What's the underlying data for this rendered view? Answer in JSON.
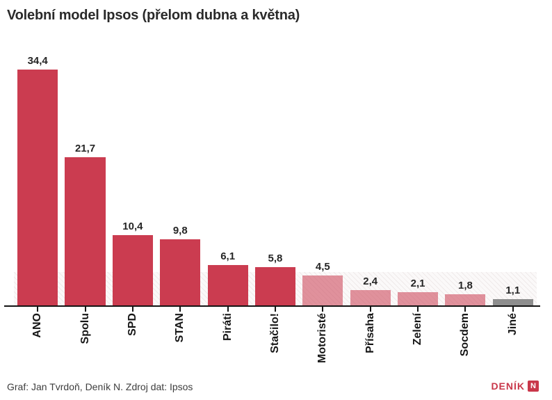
{
  "title": "Volební model Ipsos (přelom dubna a května)",
  "footer": {
    "credit": "Graf: Jan Tvrdoň, Deník N. Zdroj dat: Ipsos",
    "logo_text": "DENÍK",
    "logo_badge": "N"
  },
  "colors": {
    "bar_strong": "#cb3c50",
    "bar_weak": "rgba(203,60,80,0.55)",
    "bar_other": "#8e8e8e",
    "axis": "#141414",
    "logo_red": "#c9374a",
    "threshold_stripe": "#efeaea",
    "threshold_bg": "#fbf9f9"
  },
  "chart_data": {
    "type": "bar",
    "title": "Volební model Ipsos (přelom dubna a května)",
    "categories": [
      "ANO",
      "Spolu",
      "SPD",
      "STAN",
      "Piráti",
      "Stačilo!",
      "Motoristé",
      "Přísaha",
      "Zelení",
      "Socdem",
      "Jiné"
    ],
    "values": [
      34.4,
      21.7,
      10.4,
      9.8,
      6.1,
      5.8,
      4.5,
      2.4,
      2.1,
      1.8,
      1.1
    ],
    "value_labels": [
      "34,4",
      "21,7",
      "10,4",
      "9,8",
      "6,1",
      "5,8",
      "4,5",
      "2,4",
      "2,1",
      "1,8",
      "1,1"
    ],
    "bar_styles": [
      "strong",
      "strong",
      "strong",
      "strong",
      "strong",
      "strong",
      "weak",
      "weak",
      "weak",
      "weak",
      "other"
    ],
    "xlabel": "",
    "ylabel": "",
    "ylim": [
      0,
      38
    ],
    "grid": false,
    "legend": false,
    "threshold_band": {
      "from": 0,
      "to": 5
    }
  }
}
